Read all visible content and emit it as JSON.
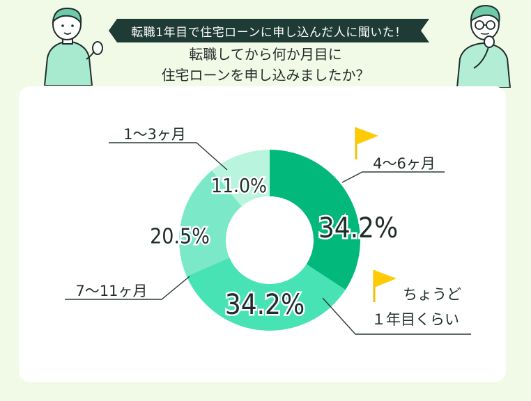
{
  "header": {
    "banner": "転職1年目で住宅ローンに申し込んだ人に聞いた！",
    "question_line1": "転職してから何か月目に",
    "question_line2": "住宅ローンを申し込みましたか？"
  },
  "annotation": {
    "line1": "ちょうど",
    "line2": "１年目くらい"
  },
  "colors": {
    "background": "#f1fae6",
    "card": "#ffffff",
    "banner": "#1f3b36"
  },
  "chart_data": {
    "type": "pie",
    "donut": true,
    "categories": [
      "4〜6ヶ月",
      "ちょうど１年目くらい",
      "7〜11ヶ月",
      "1〜3ヶ月"
    ],
    "values": [
      34.2,
      34.2,
      20.5,
      11.0
    ],
    "value_labels": [
      "34.2%",
      "34.2%",
      "20.5%",
      "11.0%"
    ],
    "outer_labels": [
      "4〜6ヶ月",
      "",
      "7〜11ヶ月",
      "1〜3ヶ月"
    ],
    "colors": [
      "#02b87a",
      "#48e3b4",
      "#7be9c7",
      "#b9f4df"
    ]
  }
}
